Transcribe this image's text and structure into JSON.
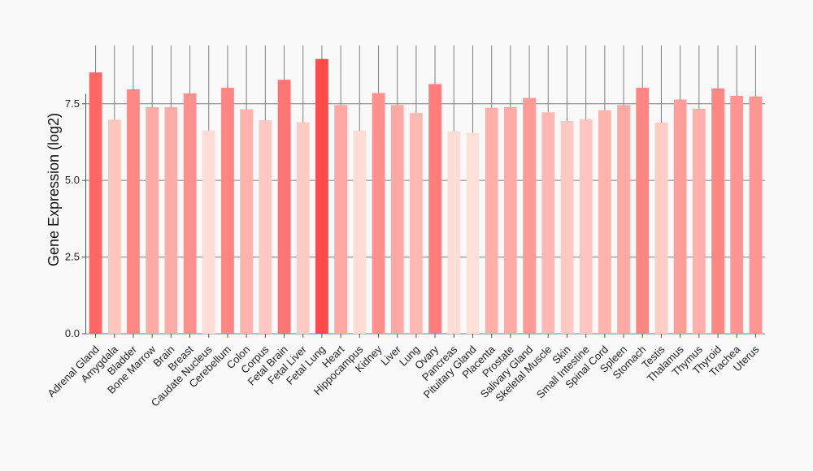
{
  "chart_data": {
    "type": "bar",
    "title": "",
    "xlabel": "",
    "ylabel": "Gene Expression (log2)",
    "ylim": [
      0,
      9.4
    ],
    "yticks": [
      0.0,
      2.5,
      5.0,
      7.5
    ],
    "ytick_labels": [
      "0.0",
      "2.5",
      "5.0",
      "7.5"
    ],
    "grid": "horizontal and vertical",
    "categories": [
      "Adrenal Gland",
      "Amygdala",
      "Bladder",
      "Bone Marrow",
      "Brain",
      "Breast",
      "Caudate Nucleus",
      "Cerebellum",
      "Colon",
      "Corpus",
      "Fetal Brain",
      "Fetal Liver",
      "Fetal Lung",
      "Heart",
      "Hippocampus",
      "Kidney",
      "Liver",
      "Lung",
      "Ovary",
      "Pancreas",
      "Pituitary Gland",
      "Placenta",
      "Prostate",
      "Salivary Gland",
      "Skeletal Muscle",
      "Skin",
      "Small Intestine",
      "Spinal Cord",
      "Spleen",
      "Stomach",
      "Testis",
      "Thalamus",
      "Thymus",
      "Thyroid",
      "Trachea",
      "Uterus"
    ],
    "values": [
      8.52,
      6.98,
      7.97,
      7.39,
      7.39,
      7.84,
      6.63,
      8.02,
      7.32,
      6.96,
      8.28,
      6.9,
      8.96,
      7.46,
      6.63,
      7.85,
      7.46,
      7.2,
      8.14,
      6.6,
      6.55,
      7.37,
      7.39,
      7.69,
      7.22,
      6.94,
      6.99,
      7.29,
      7.46,
      8.02,
      6.89,
      7.64,
      7.34,
      8.0,
      7.76,
      7.74
    ],
    "colors": {
      "low": "#ffe1da",
      "high": "#ff4a4a",
      "grid": "#7f7f7f",
      "axis": "#555555",
      "background": "#f9f9f9"
    }
  }
}
